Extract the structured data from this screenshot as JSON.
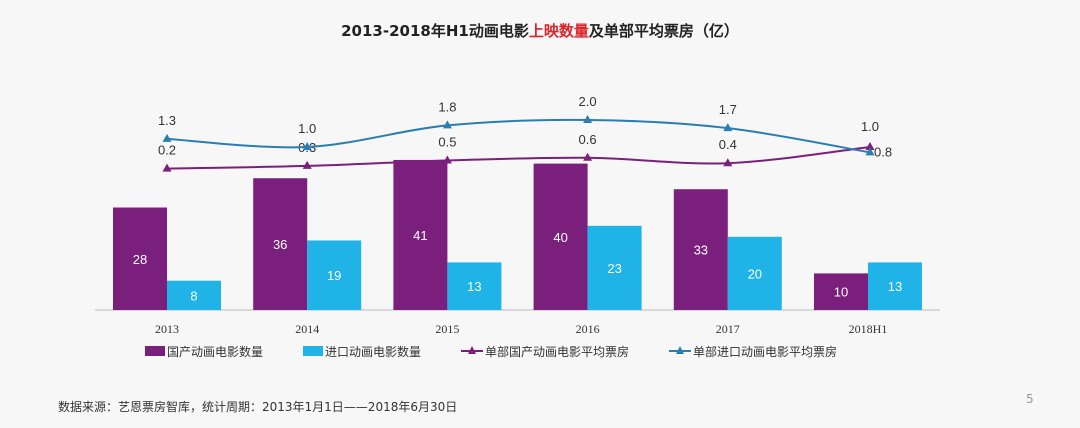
{
  "chart_data": {
    "type": "bar",
    "title_parts": [
      "2013-2018年H1动画电影",
      "上映数量",
      "及单部平均票房（亿）"
    ],
    "categories": [
      "2013",
      "2014",
      "2015",
      "2016",
      "2017",
      "2018H1"
    ],
    "series": [
      {
        "name": "国产动画电影数量",
        "kind": "bar",
        "color": "#7b1f7c",
        "values": [
          28,
          36,
          41,
          40,
          33,
          10
        ]
      },
      {
        "name": "进口动画电影数量",
        "kind": "bar",
        "color": "#1fb3e8",
        "values": [
          8,
          19,
          13,
          23,
          20,
          13
        ]
      },
      {
        "name": "单部国产动画电影平均票房",
        "kind": "line",
        "marker": "triangle",
        "color": "#7b1f7c",
        "values": [
          0.2,
          0.3,
          0.5,
          0.6,
          0.4,
          1.0
        ]
      },
      {
        "name": "单部进口动画电影平均票房",
        "kind": "line",
        "marker": "triangle",
        "color": "#2a7fb0",
        "values": [
          1.3,
          1.0,
          1.8,
          2.0,
          1.7,
          0.8
        ]
      }
    ],
    "legend": "bottom",
    "grid": false
  },
  "footer": {
    "source": "数据来源：艺恩票房智库，统计周期：2013年1月1日——2018年6月30日",
    "page": "5"
  }
}
